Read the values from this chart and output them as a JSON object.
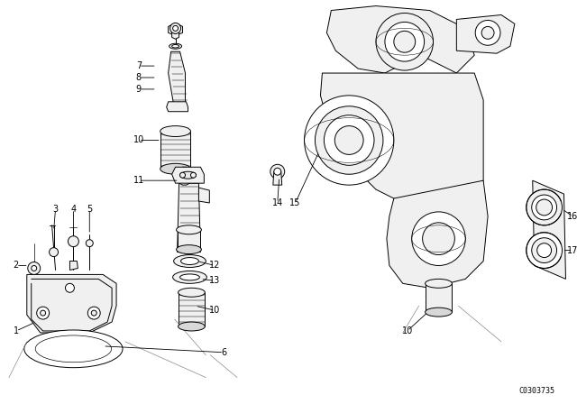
{
  "bg_color": "#ffffff",
  "fig_width": 6.4,
  "fig_height": 4.48,
  "dpi": 100,
  "catalog_number": "C0303735",
  "line_color": "#000000",
  "line_width": 0.7,
  "font_size": 7.0
}
